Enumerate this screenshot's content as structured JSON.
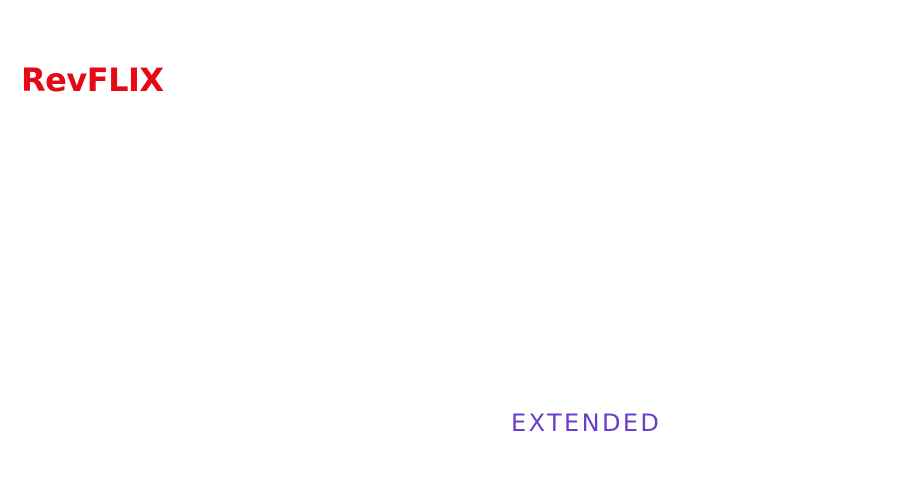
{
  "header": {
    "logo_text": "RevFLIX"
  },
  "main": {
    "badge_text": "EXTENDED"
  },
  "colors": {
    "brand": "#e50914",
    "accent": "#6c3fc9",
    "background": "#ffffff"
  }
}
